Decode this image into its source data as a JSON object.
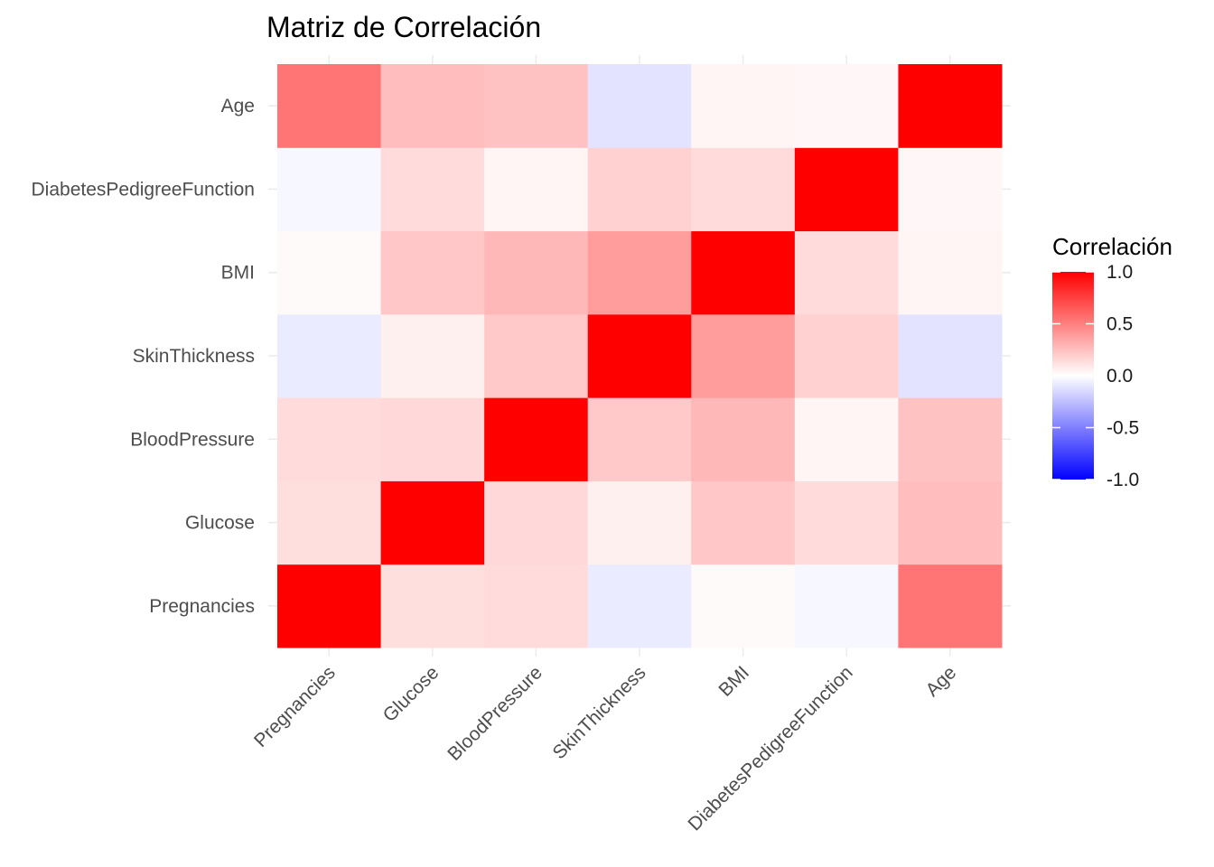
{
  "chart_data": {
    "type": "heatmap",
    "title": "Matriz de Correlación",
    "xlabel": "",
    "ylabel": "",
    "x_categories": [
      "Pregnancies",
      "Glucose",
      "BloodPressure",
      "SkinThickness",
      "BMI",
      "DiabetesPedigreeFunction",
      "Age"
    ],
    "y_categories": [
      "Pregnancies",
      "Glucose",
      "BloodPressure",
      "SkinThickness",
      "BMI",
      "DiabetesPedigreeFunction",
      "Age"
    ],
    "y_order": "bottom-to-top",
    "values": [
      [
        1.0,
        0.13,
        0.14,
        -0.08,
        0.02,
        -0.03,
        0.54
      ],
      [
        0.13,
        1.0,
        0.15,
        0.06,
        0.22,
        0.14,
        0.26
      ],
      [
        0.14,
        0.15,
        1.0,
        0.21,
        0.28,
        0.04,
        0.24
      ],
      [
        -0.08,
        0.06,
        0.21,
        1.0,
        0.39,
        0.18,
        -0.11
      ],
      [
        0.02,
        0.22,
        0.28,
        0.39,
        1.0,
        0.14,
        0.04
      ],
      [
        -0.03,
        0.14,
        0.04,
        0.18,
        0.14,
        1.0,
        0.03
      ],
      [
        0.54,
        0.26,
        0.24,
        -0.11,
        0.04,
        0.03,
        1.0
      ]
    ],
    "color_scale": {
      "low": "#0000ff",
      "mid": "#ffffff",
      "high": "#ff0000",
      "limits": [
        -1,
        1
      ]
    },
    "legend": {
      "title": "Correlación",
      "ticks": [
        1.0,
        0.5,
        0.0,
        -0.5,
        -1.0
      ],
      "tick_labels": [
        "1.0",
        "0.5",
        "0.0",
        "-0.5",
        "-1.0"
      ],
      "placement": "right"
    },
    "grid": true
  }
}
